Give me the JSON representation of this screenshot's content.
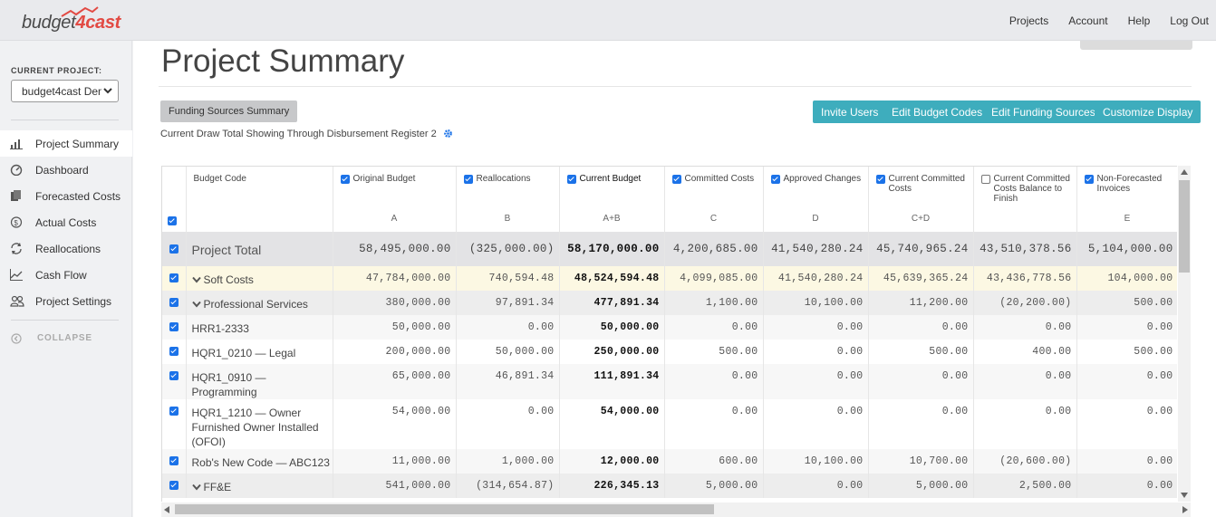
{
  "app": {
    "logo_text": "budget",
    "logo_accent": "4cast",
    "accent_color": "#e24a43",
    "teal_color": "#3eadbd"
  },
  "topnav": {
    "projects": "Projects",
    "account": "Account",
    "help": "Help",
    "logout": "Log Out"
  },
  "sidebar": {
    "current_project_label": "CURRENT PROJECT:",
    "current_project_value": "budget4cast Dem",
    "items": [
      {
        "label": "Project Summary",
        "icon": "bar-chart-icon",
        "active": true
      },
      {
        "label": "Dashboard",
        "icon": "dashboard-gauge-icon"
      },
      {
        "label": "Forecasted Costs",
        "icon": "documents-icon"
      },
      {
        "label": "Actual Costs",
        "icon": "dollar-circle-icon"
      },
      {
        "label": "Reallocations",
        "icon": "refresh-arrows-icon"
      },
      {
        "label": "Cash Flow",
        "icon": "line-chart-icon"
      },
      {
        "label": "Project Settings",
        "icon": "users-icon"
      }
    ],
    "collapse_label": "COLLAPSE"
  },
  "main": {
    "title": "Project Summary",
    "funding_summary_btn": "Funding Sources Summary",
    "draw_note": "Current Draw Total Showing Through Disbursement Register 2",
    "buttons": {
      "invite": "Invite Users",
      "edit_codes": "Edit Budget Codes",
      "edit_funding": "Edit Funding Sources",
      "customize": "Customize Display"
    }
  },
  "table": {
    "columns": [
      {
        "label": "Budget Code",
        "code": "",
        "checked": null
      },
      {
        "label": "Original Budget",
        "code": "A",
        "checked": true
      },
      {
        "label": "Reallocations",
        "code": "B",
        "checked": true
      },
      {
        "label": "Current Budget",
        "code": "A+B",
        "checked": true
      },
      {
        "label": "Committed Costs",
        "code": "C",
        "checked": true
      },
      {
        "label": "Approved Changes",
        "code": "D",
        "checked": true
      },
      {
        "label": "Current Committed Costs",
        "code": "C+D",
        "checked": true
      },
      {
        "label": "Current Committed Costs Balance to Finish",
        "code": "",
        "checked": false
      },
      {
        "label": "Non-Forecasted Invoices",
        "code": "E",
        "checked": true
      }
    ],
    "rows": [
      {
        "type": "total",
        "name": "Project Total",
        "values": [
          "58,495,000.00",
          "(325,000.00)",
          "58,170,000.00",
          "4,200,685.00",
          "41,540,280.24",
          "45,740,965.24",
          "43,510,378.56",
          "5,104,000.00"
        ]
      },
      {
        "type": "soft",
        "name": "Soft Costs",
        "caret": true,
        "values": [
          "47,784,000.00",
          "740,594.48",
          "48,524,594.48",
          "4,099,085.00",
          "41,540,280.24",
          "45,639,365.24",
          "43,436,778.56",
          "104,000.00"
        ]
      },
      {
        "type": "grp",
        "name": "Professional Services",
        "caret": true,
        "values": [
          "380,000.00",
          "97,891.34",
          "477,891.34",
          "1,100.00",
          "10,100.00",
          "11,200.00",
          "(20,200.00)",
          "500.00"
        ]
      },
      {
        "type": "alt",
        "name": "HRR1-2333",
        "values": [
          "50,000.00",
          "0.00",
          "50,000.00",
          "0.00",
          "0.00",
          "0.00",
          "0.00",
          "0.00"
        ]
      },
      {
        "type": "plain",
        "name": "HQR1_0210 — Legal",
        "values": [
          "200,000.00",
          "50,000.00",
          "250,000.00",
          "500.00",
          "0.00",
          "500.00",
          "400.00",
          "500.00"
        ]
      },
      {
        "type": "alt",
        "name": "HQR1_0910 — Programming",
        "values": [
          "65,000.00",
          "46,891.34",
          "111,891.34",
          "0.00",
          "0.00",
          "0.00",
          "0.00",
          "0.00"
        ]
      },
      {
        "type": "plain",
        "name": "HQR1_1210 — Owner Furnished Owner Installed (OFOI)",
        "values": [
          "54,000.00",
          "0.00",
          "54,000.00",
          "0.00",
          "0.00",
          "0.00",
          "0.00",
          "0.00"
        ]
      },
      {
        "type": "alt",
        "name": "Rob's New Code — ABC123",
        "values": [
          "11,000.00",
          "1,000.00",
          "12,000.00",
          "600.00",
          "10,100.00",
          "10,700.00",
          "(20,600.00)",
          "0.00"
        ]
      },
      {
        "type": "grp",
        "name": "FF&E",
        "caret": true,
        "values": [
          "541,000.00",
          "(314,654.87)",
          "226,345.13",
          "5,000.00",
          "0.00",
          "5,000.00",
          "2,500.00",
          "0.00"
        ]
      }
    ]
  }
}
